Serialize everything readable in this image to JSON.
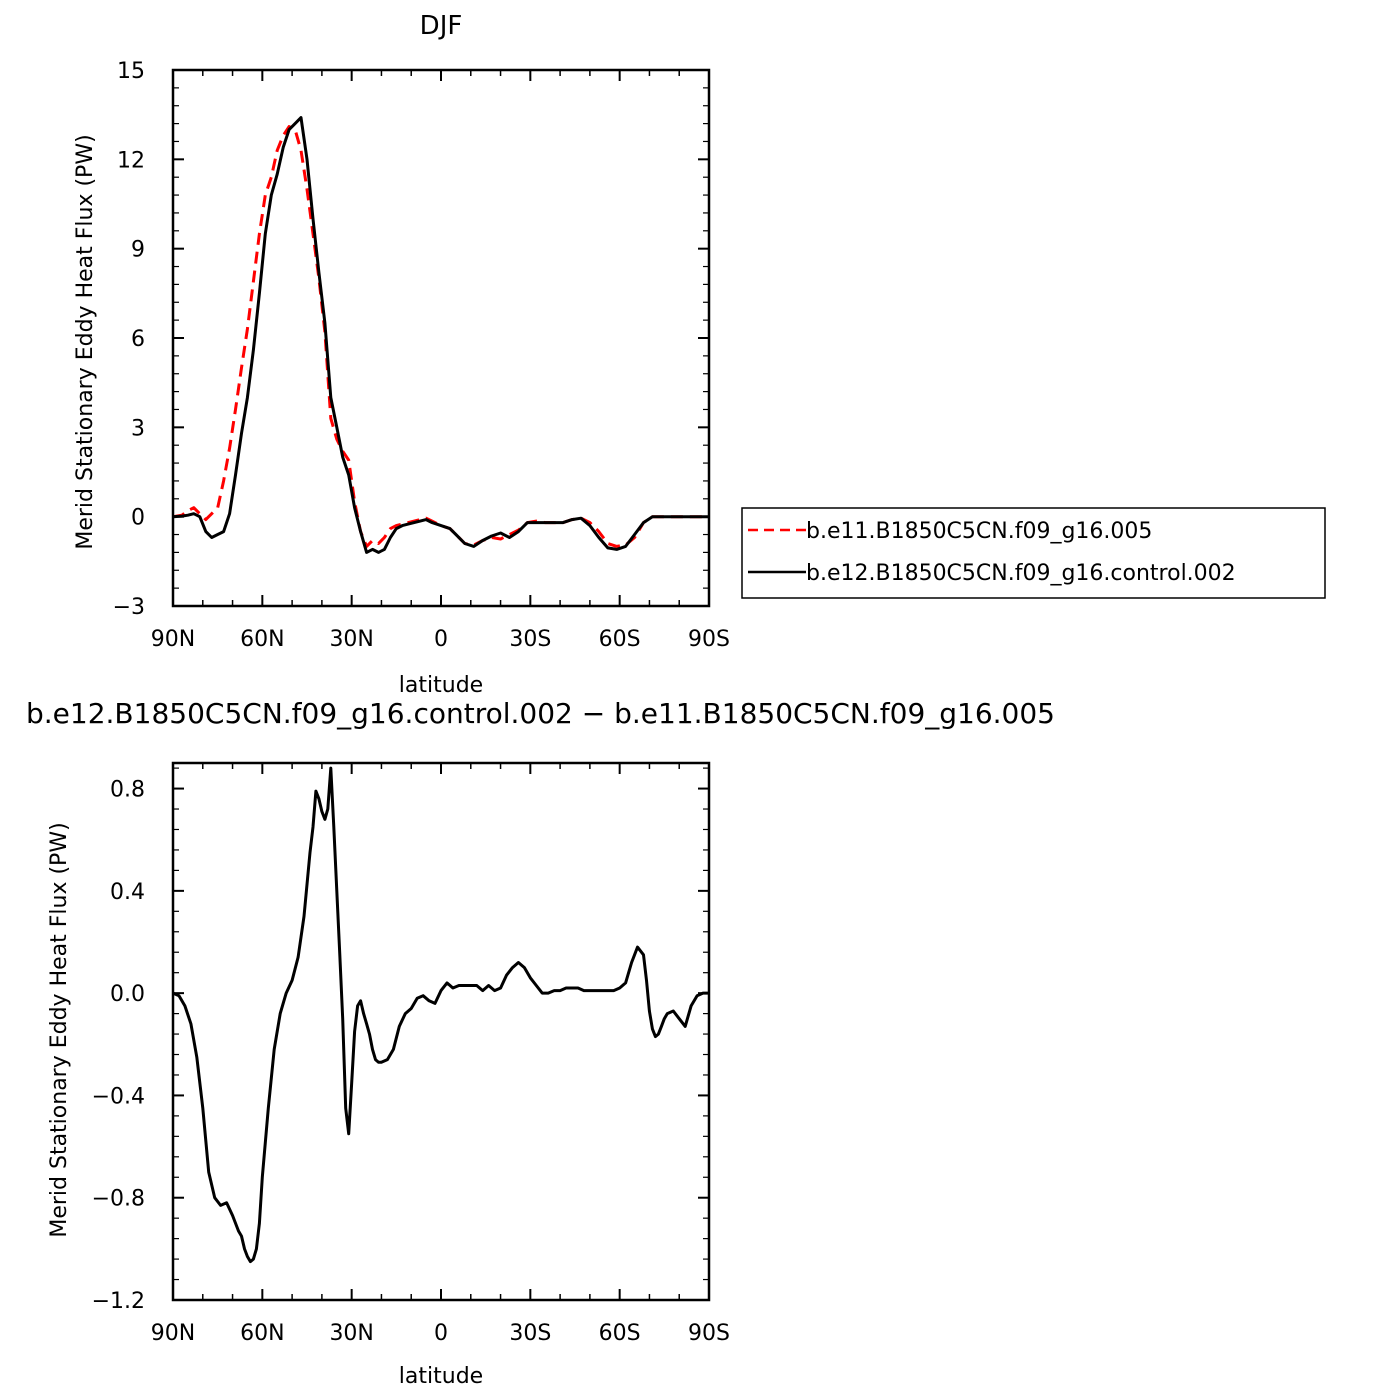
{
  "chart_data": [
    {
      "type": "line",
      "title": "DJF",
      "xlabel": "latitude",
      "ylabel": "Merid Stationary Eddy Heat Flux (PW)",
      "xlim": [
        90,
        -90
      ],
      "ylim": [
        -3,
        15
      ],
      "xticks": [
        90,
        60,
        30,
        0,
        -30,
        -60,
        -90
      ],
      "xtick_labels": [
        "90N",
        "60N",
        "30N",
        "0",
        "30S",
        "60S",
        "90S"
      ],
      "yticks": [
        -3,
        0,
        3,
        6,
        9,
        12,
        15
      ],
      "ytick_labels": [
        "−3",
        "0",
        "3",
        "6",
        "9",
        "12",
        "15"
      ],
      "legend": "right",
      "series": [
        {
          "name": "b.e11.B1850C5CN.f09_g16.005",
          "color": "#ff0000",
          "dash": "dashed",
          "x": [
            90,
            87,
            85,
            83,
            81,
            79,
            77,
            75,
            73,
            71,
            69,
            67,
            65,
            63,
            61,
            59,
            57,
            55,
            53,
            51,
            49,
            47,
            45,
            43,
            41,
            39,
            37,
            35,
            33,
            31,
            29,
            27,
            25,
            23,
            21,
            19,
            17,
            15,
            13,
            11,
            9,
            7,
            5,
            3,
            0,
            -3,
            -5,
            -8,
            -11,
            -14,
            -17,
            -20,
            -23,
            -26,
            -29,
            -32,
            -35,
            -38,
            -41,
            -44,
            -47,
            -50,
            -53,
            -56,
            -59,
            -62,
            -65,
            -68,
            -71,
            -74,
            -77,
            -80,
            -83,
            -86,
            -90
          ],
          "y": [
            0,
            0.05,
            0.2,
            0.3,
            0.1,
            -0.1,
            0.1,
            0.3,
            1.2,
            2.3,
            3.6,
            5.0,
            6.3,
            7.9,
            9.5,
            10.8,
            11.4,
            12.3,
            12.8,
            13.1,
            13.0,
            12.3,
            11.0,
            9.5,
            8.0,
            6.2,
            3.3,
            2.6,
            2.2,
            1.9,
            0.5,
            -0.5,
            -1.0,
            -0.8,
            -0.9,
            -0.7,
            -0.4,
            -0.3,
            -0.25,
            -0.2,
            -0.15,
            -0.1,
            -0.05,
            -0.15,
            -0.3,
            -0.4,
            -0.6,
            -0.9,
            -0.95,
            -0.8,
            -0.7,
            -0.75,
            -0.6,
            -0.45,
            -0.2,
            -0.15,
            -0.2,
            -0.2,
            -0.2,
            -0.1,
            -0.05,
            -0.2,
            -0.5,
            -0.9,
            -1.0,
            -0.95,
            -0.7,
            -0.2,
            0,
            0,
            0,
            0,
            0,
            0,
            0
          ]
        },
        {
          "name": "b.e12.B1850C5CN.f09_g16.control.002",
          "color": "#000000",
          "dash": "solid",
          "x": [
            90,
            87,
            85,
            83,
            81,
            79,
            77,
            75,
            73,
            71,
            69,
            67,
            65,
            63,
            61,
            59,
            57,
            55,
            53,
            51,
            49,
            47,
            45,
            43,
            41,
            39,
            37,
            35,
            33,
            31,
            29,
            27,
            25,
            23,
            21,
            19,
            17,
            15,
            13,
            11,
            9,
            7,
            5,
            3,
            0,
            -3,
            -5,
            -8,
            -11,
            -14,
            -17,
            -20,
            -23,
            -26,
            -29,
            -32,
            -35,
            -38,
            -41,
            -44,
            -47,
            -50,
            -53,
            -56,
            -59,
            -62,
            -65,
            -68,
            -71,
            -74,
            -77,
            -80,
            -83,
            -86,
            -90
          ],
          "y": [
            0,
            0.02,
            0.05,
            0.1,
            0.0,
            -0.5,
            -0.7,
            -0.6,
            -0.5,
            0.1,
            1.4,
            2.8,
            4.0,
            5.6,
            7.5,
            9.5,
            10.8,
            11.5,
            12.4,
            13.0,
            13.2,
            13.4,
            12.0,
            10.0,
            8.2,
            6.5,
            4.0,
            3.0,
            2.0,
            1.4,
            0.3,
            -0.5,
            -1.2,
            -1.1,
            -1.2,
            -1.1,
            -0.7,
            -0.4,
            -0.3,
            -0.25,
            -0.2,
            -0.15,
            -0.1,
            -0.2,
            -0.3,
            -0.4,
            -0.6,
            -0.9,
            -1.0,
            -0.8,
            -0.65,
            -0.55,
            -0.7,
            -0.5,
            -0.2,
            -0.2,
            -0.2,
            -0.2,
            -0.2,
            -0.1,
            -0.05,
            -0.3,
            -0.7,
            -1.05,
            -1.1,
            -1.0,
            -0.6,
            -0.2,
            0,
            0,
            0,
            0,
            0,
            0,
            0
          ]
        }
      ]
    },
    {
      "type": "line",
      "title": "b.e12.B1850C5CN.f09_g16.control.002 − b.e11.B1850C5CN.f09_g16.005",
      "xlabel": "latitude",
      "ylabel": "Merid Stationary Eddy Heat Flux (PW)",
      "xlim": [
        90,
        -90
      ],
      "ylim": [
        -1.2,
        0.9
      ],
      "xticks": [
        90,
        60,
        30,
        0,
        -30,
        -60,
        -90
      ],
      "xtick_labels": [
        "90N",
        "60N",
        "30N",
        "0",
        "30S",
        "60S",
        "90S"
      ],
      "yticks": [
        -1.2,
        -0.8,
        -0.4,
        0.0,
        0.4,
        0.8
      ],
      "ytick_labels": [
        "−1.2",
        "−0.8",
        "−0.4",
        "0.0",
        "0.4",
        "0.8"
      ],
      "series": [
        {
          "color": "#000000",
          "dash": "solid",
          "x": [
            90,
            88,
            86,
            84,
            82,
            80,
            78,
            76,
            74,
            72,
            70,
            68,
            67,
            66,
            65,
            64,
            63,
            62,
            61,
            60,
            58,
            56,
            54,
            52,
            50,
            48,
            46,
            44,
            43,
            42,
            41,
            40,
            39,
            38,
            37,
            36,
            35,
            34,
            33,
            32,
            31,
            30,
            29,
            28,
            27,
            26,
            25,
            24,
            23,
            22,
            21,
            20,
            18,
            16,
            14,
            12,
            10,
            8,
            6,
            4,
            2,
            0,
            -2,
            -4,
            -6,
            -8,
            -10,
            -12,
            -14,
            -16,
            -18,
            -20,
            -22,
            -24,
            -26,
            -28,
            -30,
            -32,
            -34,
            -36,
            -38,
            -40,
            -42,
            -44,
            -46,
            -48,
            -50,
            -52,
            -54,
            -56,
            -58,
            -60,
            -62,
            -64,
            -66,
            -68,
            -69,
            -70,
            -71,
            -72,
            -73,
            -74,
            -75,
            -76,
            -78,
            -80,
            -82,
            -84,
            -86,
            -88,
            -90
          ],
          "y": [
            0,
            -0.01,
            -0.05,
            -0.12,
            -0.25,
            -0.45,
            -0.7,
            -0.8,
            -0.83,
            -0.82,
            -0.87,
            -0.93,
            -0.95,
            -1.0,
            -1.03,
            -1.05,
            -1.04,
            -1.0,
            -0.9,
            -0.72,
            -0.45,
            -0.22,
            -0.08,
            0.0,
            0.05,
            0.14,
            0.3,
            0.55,
            0.65,
            0.79,
            0.76,
            0.71,
            0.68,
            0.72,
            0.88,
            0.65,
            0.4,
            0.15,
            -0.1,
            -0.45,
            -0.55,
            -0.35,
            -0.15,
            -0.05,
            -0.03,
            -0.08,
            -0.12,
            -0.16,
            -0.22,
            -0.26,
            -0.27,
            -0.27,
            -0.26,
            -0.22,
            -0.13,
            -0.08,
            -0.06,
            -0.02,
            -0.01,
            -0.03,
            -0.04,
            0.01,
            0.04,
            0.02,
            0.03,
            0.03,
            0.03,
            0.03,
            0.01,
            0.03,
            0.01,
            0.02,
            0.07,
            0.1,
            0.12,
            0.1,
            0.06,
            0.03,
            0.0,
            0.0,
            0.01,
            0.01,
            0.02,
            0.02,
            0.02,
            0.01,
            0.01,
            0.01,
            0.01,
            0.01,
            0.01,
            0.02,
            0.04,
            0.12,
            0.18,
            0.15,
            0.05,
            -0.07,
            -0.14,
            -0.17,
            -0.16,
            -0.13,
            -0.1,
            -0.08,
            -0.07,
            -0.1,
            -0.13,
            -0.05,
            -0.01,
            0,
            0
          ]
        }
      ]
    }
  ]
}
